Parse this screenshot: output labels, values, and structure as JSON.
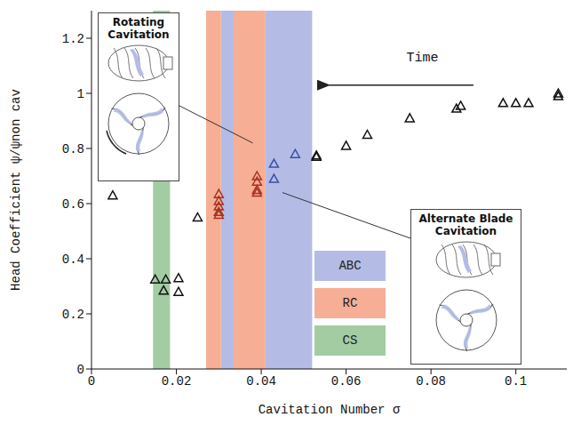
{
  "chart_data": {
    "type": "scatter",
    "x_label": "Cavitation Number σ",
    "y_label": "Head Coefficient ψ/ψnon cav",
    "xlim": [
      0,
      0.112
    ],
    "ylim": [
      0,
      1.3
    ],
    "xticks": [
      0,
      0.02,
      0.04,
      0.06,
      0.08,
      0.1
    ],
    "yticks": [
      0,
      0.2,
      0.4,
      0.6,
      0.8,
      1,
      1.2
    ],
    "grid": false,
    "marker": "triangle",
    "x": [
      0.11,
      0.11,
      0.103,
      0.1,
      0.097,
      0.087,
      0.086,
      0.075,
      0.065,
      0.06,
      0.053,
      0.053,
      0.048,
      0.043,
      0.043,
      0.039,
      0.039,
      0.039,
      0.039,
      0.03,
      0.03,
      0.03,
      0.03,
      0.03,
      0.025,
      0.015,
      0.0175,
      0.0205,
      0.017,
      0.0205,
      0.005
    ],
    "values": [
      1.0,
      0.99,
      0.965,
      0.965,
      0.965,
      0.955,
      0.945,
      0.91,
      0.85,
      0.81,
      0.775,
      0.77,
      0.78,
      0.745,
      0.69,
      0.7,
      0.68,
      0.65,
      0.64,
      0.635,
      0.61,
      0.59,
      0.57,
      0.56,
      0.55,
      0.325,
      0.325,
      0.33,
      0.285,
      0.28,
      0.63
    ],
    "colors": [
      "#111111",
      "#111111",
      "#111111",
      "#111111",
      "#111111",
      "#111111",
      "#111111",
      "#111111",
      "#111111",
      "#111111",
      "#111111",
      "#111111",
      "#3b4fa8",
      "#3b4fa8",
      "#3b4fa8",
      "#a8321e",
      "#a8321e",
      "#a8321e",
      "#a8321e",
      "#a8321e",
      "#a8321e",
      "#a8321e",
      "#a8321e",
      "#a8321e",
      "#111111",
      "#111111",
      "#111111",
      "#111111",
      "#111111",
      "#111111",
      "#111111"
    ],
    "bands": [
      {
        "label": "ABC",
        "color": "#b4bce6",
        "ranges": [
          [
            0.0305,
            0.0335
          ],
          [
            0.041,
            0.052
          ]
        ]
      },
      {
        "label": "RC",
        "color": "#f6ae95",
        "ranges": [
          [
            0.027,
            0.0305
          ],
          [
            0.0335,
            0.041
          ]
        ]
      },
      {
        "label": "CS",
        "color": "#a3cca3",
        "ranges": [
          [
            0.0145,
            0.0185
          ]
        ]
      }
    ],
    "annotations": {
      "time": "Time",
      "inset_rc": "Rotating Cavitation",
      "inset_abc": "Alternate Blade Cavitation"
    }
  }
}
